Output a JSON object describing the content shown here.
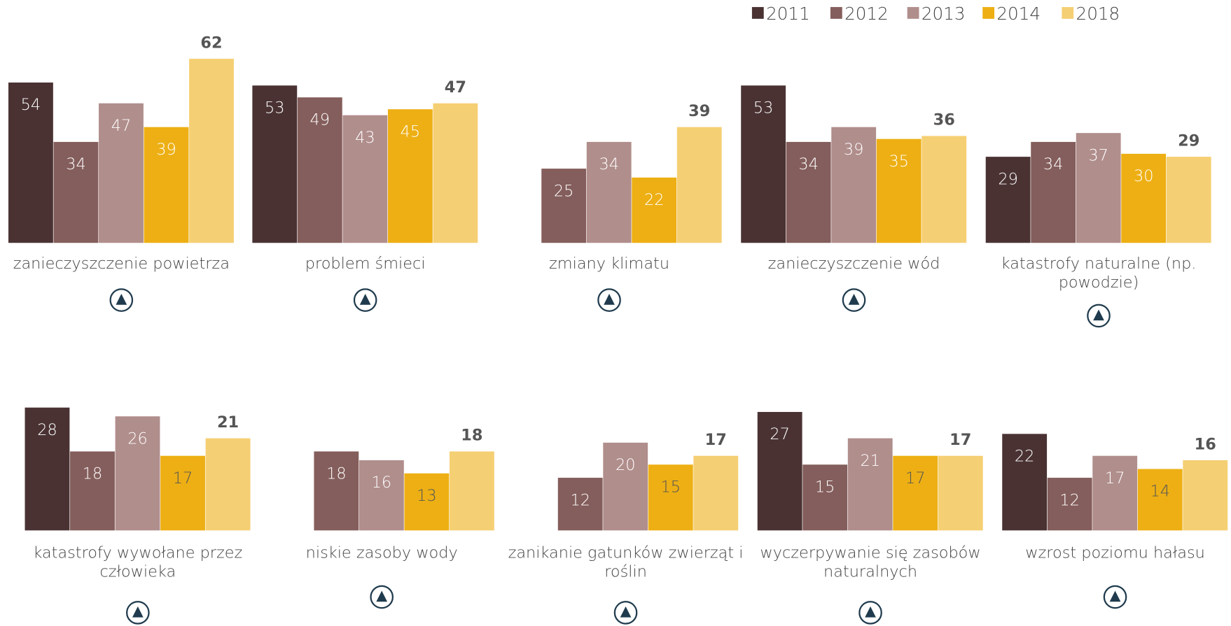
{
  "chart_data": {
    "type": "bar",
    "categories": [
      "zanieczyszczenie powietrza",
      "problem śmieci",
      "zmiany klimatu",
      "zanieczyszczenie wód",
      "katastrofy naturalne (np. powodzie)",
      "katastrofy wywołane przez człowieka",
      "niskie zasoby wody",
      "zanikanie gatunków zwierząt i roślin",
      "wyczerpywanie się zasobów naturalnych",
      "wzrost poziomu hałasu"
    ],
    "series": [
      {
        "name": "2011",
        "color": "#4a3233",
        "values": [
          54,
          53,
          null,
          53,
          29,
          28,
          null,
          null,
          27,
          22
        ]
      },
      {
        "name": "2012",
        "color": "#845e5c",
        "values": [
          34,
          49,
          25,
          34,
          34,
          18,
          18,
          12,
          15,
          12
        ]
      },
      {
        "name": "2013",
        "color": "#b08e8c",
        "values": [
          47,
          43,
          34,
          39,
          37,
          26,
          16,
          20,
          21,
          17
        ]
      },
      {
        "name": "2014",
        "color": "#edaf14",
        "values": [
          39,
          45,
          22,
          35,
          30,
          17,
          13,
          15,
          17,
          14
        ]
      },
      {
        "name": "2018",
        "color": "#f5cf73",
        "values": [
          62,
          47,
          39,
          36,
          29,
          21,
          18,
          17,
          17,
          16
        ]
      }
    ],
    "legend": "top-right"
  }
}
